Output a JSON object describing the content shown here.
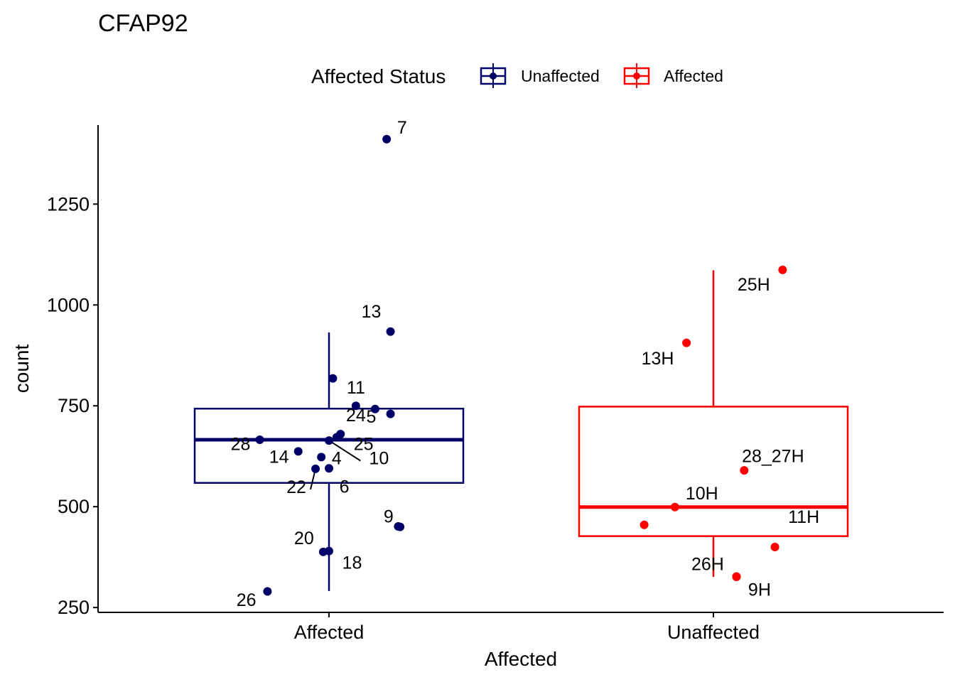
{
  "colors": {
    "unaffected": "#000066",
    "affected": "#ff0000",
    "axis": "#000000",
    "text": "#000000"
  },
  "chart_data": {
    "type": "box",
    "title": "CFAP92",
    "xlabel": "Affected",
    "ylabel": "count",
    "ylim": [
      238,
      1446
    ],
    "yticks": [
      250,
      500,
      750,
      1000,
      1250
    ],
    "ytick_labels": [
      "250",
      "500",
      "750",
      "1000",
      "1250"
    ],
    "categories": [
      "Affected",
      "Unaffected"
    ],
    "legend": {
      "title": "Affected Status",
      "position": "top",
      "items": [
        {
          "label": "Unaffected",
          "color": "#000066"
        },
        {
          "label": "Affected",
          "color": "#ff0000"
        }
      ]
    },
    "series": [
      {
        "name": "Unaffected",
        "category": "Affected",
        "color": "#000066",
        "box": {
          "min": 291,
          "q1": 559,
          "median": 666,
          "q3": 743,
          "max": 932
        },
        "points": [
          {
            "dx": 0.15,
            "y": 1411,
            "label": "7",
            "lx": 0.04,
            "ly": 1425
          },
          {
            "dx": 0.16,
            "y": 934,
            "label": "13",
            "lx": -0.05,
            "ly": 969
          },
          {
            "dx": 0.01,
            "y": 818,
            "label": "11",
            "lx": 0.06,
            "ly": 780
          },
          {
            "dx": 0.07,
            "y": 750,
            "label": "5",
            "lx": 0.04,
            "ly": 708
          },
          {
            "dx": 0.12,
            "y": 742,
            "label": "24",
            "lx": -0.05,
            "ly": 712
          },
          {
            "dx": 0.16,
            "y": 730,
            "label": "",
            "lx": 0,
            "ly": 0
          },
          {
            "dx": 0.03,
            "y": 680,
            "label": "25",
            "lx": 0.06,
            "ly": 640
          },
          {
            "dx": -0.18,
            "y": 666,
            "label": "28",
            "lx": -0.05,
            "ly": 640
          },
          {
            "dx": 0.02,
            "y": 672,
            "label": "",
            "lx": 0,
            "ly": 0
          },
          {
            "dx": -0.08,
            "y": 637,
            "label": "14",
            "lx": -0.05,
            "ly": 609
          },
          {
            "dx": -0.02,
            "y": 623,
            "label": "4",
            "lx": 0.04,
            "ly": 605
          },
          {
            "dx": 0.0,
            "y": 664,
            "label": "10",
            "lx": 0.13,
            "ly": 605
          },
          {
            "dx": -0.035,
            "y": 594,
            "label": "22",
            "lx": -0.05,
            "ly": 534
          },
          {
            "dx": 0.0,
            "y": 595,
            "label": "6",
            "lx": 0.04,
            "ly": 535
          },
          {
            "dx": 0.18,
            "y": 451,
            "label": "9",
            "lx": -0.025,
            "ly": 461
          },
          {
            "dx": 0.185,
            "y": 450,
            "label": "",
            "lx": 0,
            "ly": 0
          },
          {
            "dx": -0.015,
            "y": 388,
            "label": "20",
            "lx": -0.05,
            "ly": 407
          },
          {
            "dx": 0.0,
            "y": 390,
            "label": "18",
            "lx": 0.06,
            "ly": 346
          },
          {
            "dx": -0.16,
            "y": 290,
            "label": "26",
            "lx": -0.055,
            "ly": 254
          }
        ]
      },
      {
        "name": "Affected",
        "category": "Unaffected",
        "color": "#ff0000",
        "box": {
          "min": 326,
          "q1": 427,
          "median": 499,
          "q3": 748,
          "max": 1086
        },
        "points": [
          {
            "dx": 0.18,
            "y": 1087,
            "label": "25H",
            "lx": -0.075,
            "ly": 1036
          },
          {
            "dx": -0.07,
            "y": 906,
            "label": "13H",
            "lx": -0.075,
            "ly": 853
          },
          {
            "dx": 0.08,
            "y": 590,
            "label": "28_27H",
            "lx": 0.075,
            "ly": 610
          },
          {
            "dx": -0.1,
            "y": 499,
            "label": "10H",
            "lx": 0.07,
            "ly": 518
          },
          {
            "dx": -0.18,
            "y": 455,
            "label": "",
            "lx": 0,
            "ly": 0
          },
          {
            "dx": 0.16,
            "y": 400,
            "label": "11H",
            "lx": 0.075,
            "ly": 460
          },
          {
            "dx": 0.06,
            "y": 326,
            "label": "26H",
            "lx": -0.075,
            "ly": 343
          },
          {
            "dx": 0.06,
            "y": 327,
            "label": "9H",
            "lx": 0.06,
            "ly": 279
          }
        ]
      }
    ]
  }
}
